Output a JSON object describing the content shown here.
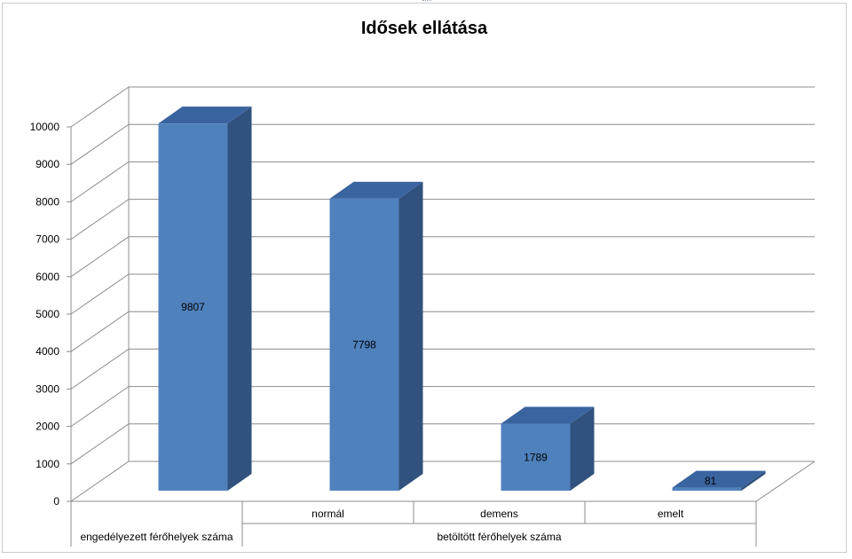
{
  "chart_data": {
    "type": "bar",
    "title": "Idősek ellátása",
    "categories": [
      "engedélyezett férőhelyek száma",
      "normál",
      "demens",
      "emelt"
    ],
    "category_groups": [
      {
        "label": "engedélyezett férőhelyek száma",
        "members": [
          "engedélyezett férőhelyek száma"
        ]
      },
      {
        "label": "betöltött férőhelyek száma",
        "members": [
          "normál",
          "demens",
          "emelt"
        ]
      }
    ],
    "values": [
      9807,
      7798,
      1789,
      81
    ],
    "data_labels": [
      "9807",
      "7798",
      "1789",
      "81"
    ],
    "ylim": [
      0,
      10000
    ],
    "yticks": [
      "0",
      "1000",
      "2000",
      "3000",
      "4000",
      "5000",
      "6000",
      "7000",
      "8000",
      "9000",
      "10000"
    ],
    "grid": true,
    "legend": "none",
    "style": "3d-column",
    "colors": {
      "front": "#4f81bd",
      "side": "#31527e",
      "top": "#3a64a0"
    }
  }
}
